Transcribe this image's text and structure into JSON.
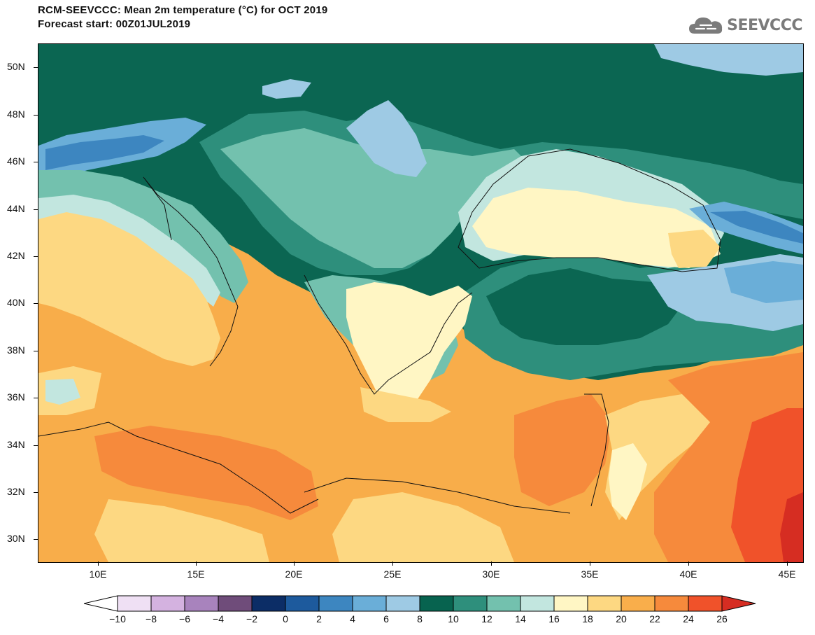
{
  "header": {
    "title_line1": "RCM-SEEVCCC: Mean 2m temperature (°C) for OCT 2019",
    "title_line2": "Forecast start: 00Z01JUL2019"
  },
  "logo": {
    "text": "SEEVCCC",
    "icon": "cloud-icon",
    "color": "#7b7b7b"
  },
  "map": {
    "lat_labels": [
      "50N",
      "48N",
      "46N",
      "44N",
      "42N",
      "40N",
      "38N",
      "36N",
      "34N",
      "32N",
      "30N"
    ],
    "lon_labels": [
      "10E",
      "15E",
      "20E",
      "25E",
      "30E",
      "35E",
      "40E",
      "45E"
    ]
  },
  "colorbar": {
    "labels": [
      "−10",
      "−8",
      "−6",
      "−4",
      "−2",
      "0",
      "2",
      "4",
      "6",
      "8",
      "10",
      "12",
      "14",
      "16",
      "18",
      "20",
      "22",
      "24",
      "26"
    ],
    "colors": [
      "#ffffff",
      "#efe0f4",
      "#d4b2e0",
      "#a883bd",
      "#6f4c7a",
      "#0c2d66",
      "#1d5a9d",
      "#3d86c0",
      "#6aaed8",
      "#9ecae4",
      "#07634f",
      "#2e8f7c",
      "#73c1ae",
      "#c2e6df",
      "#fff6c4",
      "#fdd882",
      "#f9ae4b",
      "#f68a3c",
      "#f0522a",
      "#d62d22"
    ]
  }
}
